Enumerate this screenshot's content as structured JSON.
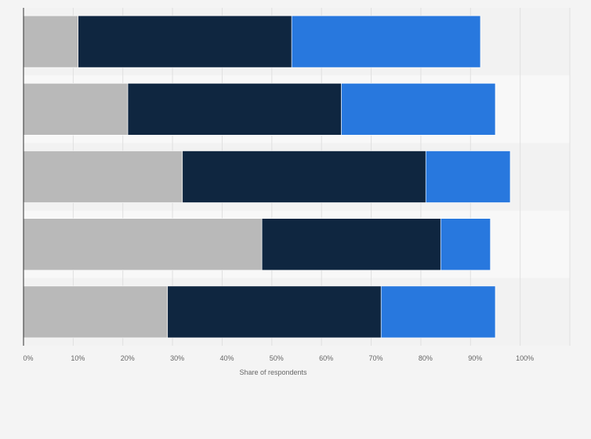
{
  "chart_data": {
    "type": "bar",
    "orientation": "horizontal",
    "stacked": true,
    "categories": [
      "",
      "",
      "",
      "",
      ""
    ],
    "series": [
      {
        "values": [
          11,
          21,
          32,
          48,
          29
        ]
      },
      {
        "values": [
          43,
          43,
          49,
          36,
          43
        ]
      },
      {
        "values": [
          38,
          31,
          17,
          10,
          23
        ]
      }
    ],
    "colors": [
      "#b9b9b9",
      "#0f2640",
      "#2878de"
    ],
    "xlabel": "Share of respondents",
    "ylabel": "",
    "xlim": [
      0,
      110
    ],
    "x_ticks": [
      "0%",
      "10%",
      "20%",
      "30%",
      "40%",
      "50%",
      "60%",
      "70%",
      "80%",
      "90%",
      "100%"
    ],
    "grid": true,
    "legend": "none"
  }
}
